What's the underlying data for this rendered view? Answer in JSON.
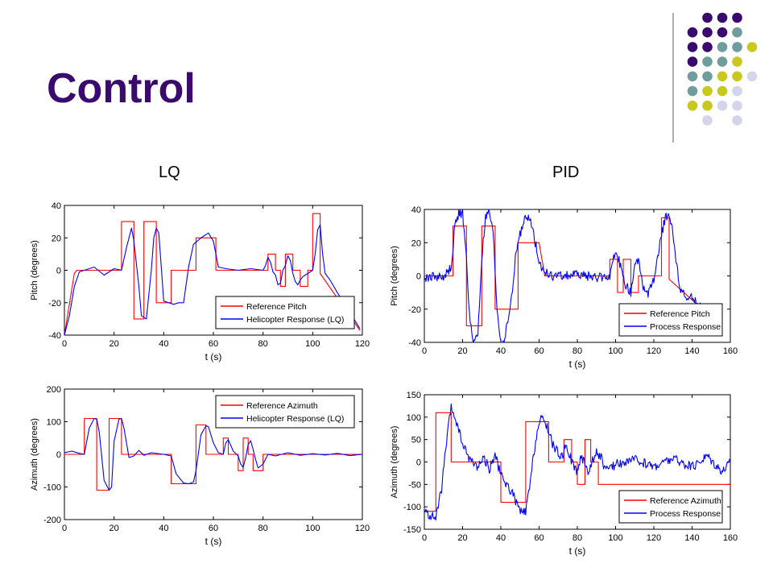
{
  "slide": {
    "title": "Control",
    "left_label": "LQ",
    "right_label": "PID",
    "colors": {
      "title": "#3a0a6e",
      "dot_purple": "#3a0a6e",
      "dot_teal": "#6f9c9c",
      "dot_yellow": "#c8c81e",
      "dot_lavender": "#d4d4ea",
      "divider": "#808080"
    }
  },
  "chart_data": [
    {
      "type": "line",
      "xlabel": "t (s)",
      "ylabel": "Pitch (degrees)",
      "xlim": [
        0,
        120
      ],
      "ylim": [
        -40,
        40
      ],
      "xticks": [
        0,
        20,
        40,
        60,
        80,
        100,
        120
      ],
      "yticks": [
        -40,
        -20,
        0,
        20,
        40
      ],
      "legend_position": "bottom-right",
      "series": [
        {
          "name": "Reference Pitch",
          "color": "#ff0000",
          "style": "step",
          "x": [
            0,
            4,
            5,
            23,
            23,
            28,
            28,
            32,
            32,
            37,
            37,
            43,
            43,
            53,
            53,
            61,
            61,
            80,
            80,
            82,
            82,
            85,
            85,
            87,
            87,
            89,
            89,
            92,
            92,
            95,
            95,
            98,
            98,
            100,
            100,
            103,
            103,
            119
          ],
          "y": [
            -40,
            -2,
            0,
            0,
            30,
            30,
            -30,
            -30,
            30,
            30,
            -20,
            -20,
            0,
            0,
            20,
            20,
            0,
            0,
            0,
            0,
            10,
            10,
            0,
            0,
            -10,
            -10,
            10,
            10,
            0,
            0,
            -10,
            -10,
            0,
            0,
            35,
            35,
            -2,
            -37
          ]
        },
        {
          "name": "Helicopter Response (LQ)",
          "color": "#0000ff",
          "style": "smooth",
          "x": [
            0,
            2,
            4,
            6,
            8,
            12,
            16,
            20,
            23,
            25,
            27,
            28,
            30,
            31,
            33,
            35,
            36,
            37,
            38,
            39,
            40,
            42,
            44,
            46,
            48,
            50,
            52,
            55,
            58,
            60,
            62,
            65,
            70,
            75,
            80,
            81,
            82,
            83,
            84,
            85,
            86,
            87,
            88,
            89,
            90,
            91,
            92,
            93,
            94,
            95,
            96,
            97,
            98,
            100,
            101,
            102,
            103,
            104,
            105,
            107,
            110,
            115,
            119
          ],
          "y": [
            -40,
            -28,
            -10,
            -1,
            0,
            2,
            -3,
            1,
            0,
            14,
            26,
            18,
            -10,
            -28,
            -30,
            0,
            20,
            26,
            23,
            2,
            -19,
            -20,
            -21,
            -20,
            -20,
            2,
            16,
            20,
            23,
            18,
            2,
            1,
            0,
            1,
            0,
            3,
            8,
            5,
            -1,
            -3,
            -9,
            -8,
            0,
            3,
            9,
            6,
            -2,
            -7,
            -9,
            -6,
            -4,
            -3,
            -2,
            0,
            10,
            25,
            28,
            10,
            -2,
            -6,
            -14,
            -26,
            -36
          ]
        }
      ]
    },
    {
      "type": "line",
      "xlabel": "t (s)",
      "ylabel": "Azimuth (degrees)",
      "xlim": [
        0,
        120
      ],
      "ylim": [
        -200,
        200
      ],
      "xticks": [
        0,
        20,
        40,
        60,
        80,
        100,
        120
      ],
      "yticks": [
        -200,
        -100,
        0,
        100,
        200
      ],
      "legend_position": "top-right",
      "series": [
        {
          "name": "Reference Azimuth",
          "color": "#ff0000",
          "style": "step",
          "x": [
            0,
            8,
            8,
            13,
            13,
            18,
            18,
            23,
            23,
            43,
            43,
            50,
            50,
            53,
            53,
            57,
            57,
            64,
            64,
            66,
            66,
            70,
            70,
            72,
            72,
            74,
            74,
            76,
            76,
            80,
            80,
            120
          ],
          "y": [
            0,
            0,
            110,
            110,
            -110,
            -110,
            110,
            110,
            0,
            0,
            -90,
            -90,
            -90,
            -90,
            90,
            90,
            0,
            0,
            50,
            50,
            0,
            0,
            -50,
            -50,
            50,
            50,
            0,
            0,
            -50,
            -50,
            0,
            0
          ]
        },
        {
          "name": "Helicopter Response (LQ)",
          "color": "#0000ff",
          "style": "smooth",
          "x": [
            0,
            3,
            6,
            8,
            10,
            12,
            13,
            14,
            16,
            18,
            19,
            20,
            22,
            23,
            24,
            26,
            28,
            30,
            32,
            35,
            40,
            43,
            45,
            48,
            50,
            52,
            53,
            55,
            57,
            58,
            60,
            62,
            64,
            65,
            66,
            68,
            70,
            71,
            72,
            73,
            74,
            75,
            76,
            77,
            78,
            80,
            82,
            85,
            90,
            95,
            100,
            105,
            110,
            115,
            120
          ],
          "y": [
            5,
            10,
            3,
            0,
            80,
            110,
            108,
            70,
            -80,
            -110,
            -100,
            40,
            108,
            110,
            80,
            -10,
            -5,
            12,
            -3,
            5,
            0,
            -5,
            -60,
            -88,
            -90,
            -85,
            -50,
            60,
            88,
            85,
            35,
            5,
            0,
            35,
            45,
            10,
            -5,
            -30,
            -40,
            -10,
            30,
            42,
            15,
            -15,
            -42,
            -30,
            0,
            -5,
            5,
            -3,
            2,
            -2,
            3,
            -4,
            0
          ]
        }
      ]
    },
    {
      "type": "line",
      "xlabel": "t (s)",
      "ylabel": "Pitch (degrees)",
      "xlim": [
        0,
        160
      ],
      "ylim": [
        -40,
        40
      ],
      "xticks": [
        0,
        20,
        40,
        60,
        80,
        100,
        120,
        140,
        160
      ],
      "yticks": [
        -40,
        -20,
        0,
        20,
        40
      ],
      "legend_position": "bottom-right",
      "series": [
        {
          "name": "Reference Pitch",
          "color": "#ff0000",
          "style": "step",
          "x": [
            0,
            15,
            15,
            22,
            22,
            30,
            30,
            37,
            37,
            49,
            49,
            60,
            60,
            63,
            63,
            97,
            97,
            101,
            101,
            104,
            104,
            108,
            108,
            112,
            112,
            117,
            117,
            124,
            124,
            128,
            128,
            155
          ],
          "y": [
            0,
            0,
            30,
            30,
            -30,
            -30,
            30,
            30,
            -20,
            -20,
            20,
            20,
            20,
            0,
            0,
            0,
            10,
            10,
            -10,
            -10,
            10,
            10,
            -10,
            -10,
            0,
            0,
            0,
            0,
            35,
            35,
            -2,
            -30
          ]
        },
        {
          "name": "Process Response",
          "color": "#0000ff",
          "style": "noisy",
          "x": [
            0,
            5,
            10,
            14,
            16,
            18,
            20,
            22,
            24,
            26,
            28,
            30,
            32,
            34,
            36,
            38,
            40,
            42,
            44,
            46,
            48,
            50,
            52,
            54,
            56,
            58,
            60,
            62,
            64,
            66,
            70,
            80,
            90,
            97,
            99,
            101,
            103,
            105,
            108,
            110,
            112,
            114,
            117,
            120,
            122,
            124,
            126,
            128,
            130,
            132,
            134,
            136,
            138,
            140,
            145,
            150,
            155
          ],
          "y": [
            -2,
            0,
            -1,
            5,
            30,
            38,
            37,
            10,
            -30,
            -40,
            -35,
            10,
            35,
            38,
            25,
            -20,
            -40,
            -38,
            -25,
            -10,
            15,
            25,
            33,
            35,
            32,
            20,
            10,
            3,
            2,
            0,
            0,
            1,
            -1,
            0,
            10,
            12,
            5,
            -5,
            -10,
            5,
            10,
            -5,
            -12,
            -2,
            10,
            25,
            35,
            38,
            25,
            5,
            -8,
            -12,
            -15,
            -12,
            -20,
            -27,
            -35
          ]
        }
      ]
    },
    {
      "type": "line",
      "xlabel": "t (s)",
      "ylabel": "Azimuth (degrees)",
      "xlim": [
        0,
        160
      ],
      "ylim": [
        -150,
        150
      ],
      "xticks": [
        0,
        20,
        40,
        60,
        80,
        100,
        120,
        140,
        160
      ],
      "yticks": [
        -150,
        -100,
        -50,
        0,
        50,
        100,
        150
      ],
      "legend_position": "bottom-right",
      "series": [
        {
          "name": "Reference Azimuth",
          "color": "#ff0000",
          "style": "step",
          "x": [
            0,
            6,
            6,
            14,
            14,
            40,
            40,
            53,
            53,
            65,
            65,
            73,
            73,
            77,
            77,
            80,
            80,
            84,
            84,
            87,
            87,
            91,
            91,
            160
          ],
          "y": [
            -110,
            -110,
            110,
            110,
            0,
            0,
            -90,
            -90,
            90,
            90,
            0,
            0,
            50,
            50,
            0,
            0,
            -50,
            -50,
            50,
            50,
            0,
            0,
            -50,
            -50
          ]
        },
        {
          "name": "Process Response",
          "color": "#0000ff",
          "style": "noisy",
          "x": [
            0,
            3,
            6,
            9,
            12,
            14,
            16,
            18,
            20,
            22,
            25,
            28,
            31,
            34,
            37,
            40,
            43,
            46,
            49,
            51,
            53,
            55,
            57,
            59,
            61,
            63,
            65,
            67,
            70,
            72,
            74,
            76,
            78,
            80,
            82,
            84,
            86,
            88,
            90,
            92,
            95,
            100,
            110,
            120,
            130,
            140,
            148,
            152,
            156,
            160
          ],
          "y": [
            -110,
            -120,
            -125,
            -60,
            60,
            120,
            100,
            70,
            40,
            20,
            0,
            -10,
            10,
            -15,
            15,
            -30,
            -50,
            -70,
            -100,
            -115,
            -110,
            -60,
            10,
            70,
            95,
            90,
            70,
            40,
            20,
            10,
            40,
            15,
            -10,
            -20,
            10,
            0,
            -25,
            5,
            20,
            15,
            -20,
            -5,
            5,
            -10,
            8,
            -12,
            15,
            -5,
            -20,
            0
          ]
        }
      ]
    }
  ]
}
